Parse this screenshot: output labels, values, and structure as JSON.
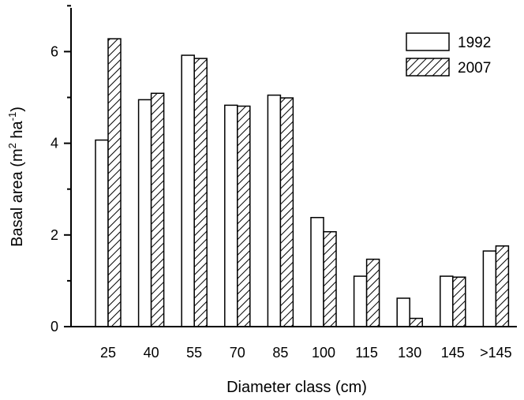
{
  "chart_data": {
    "type": "bar",
    "xlabel": "Diameter class (cm)",
    "ylabel": {
      "main": "Basal area (m",
      "sup1": "2",
      "mid": " ha",
      "sup2": "-1",
      "end": ")"
    },
    "categories": [
      "25",
      "40",
      "55",
      "70",
      "85",
      "100",
      "115",
      "130",
      "145",
      ">145"
    ],
    "series": [
      {
        "name": "1992",
        "fill": "#ffffff",
        "values": [
          4.07,
          4.95,
          5.92,
          4.83,
          5.05,
          2.38,
          1.1,
          0.62,
          1.1,
          1.65
        ]
      },
      {
        "name": "2007",
        "fill": "hatch",
        "values": [
          6.28,
          5.09,
          5.85,
          4.81,
          4.99,
          2.07,
          1.47,
          0.18,
          1.08,
          1.76
        ]
      }
    ],
    "yticks": [
      0,
      2,
      4,
      6
    ],
    "ylim": [
      0,
      7
    ],
    "legend_position": "top-right",
    "grid": false
  }
}
